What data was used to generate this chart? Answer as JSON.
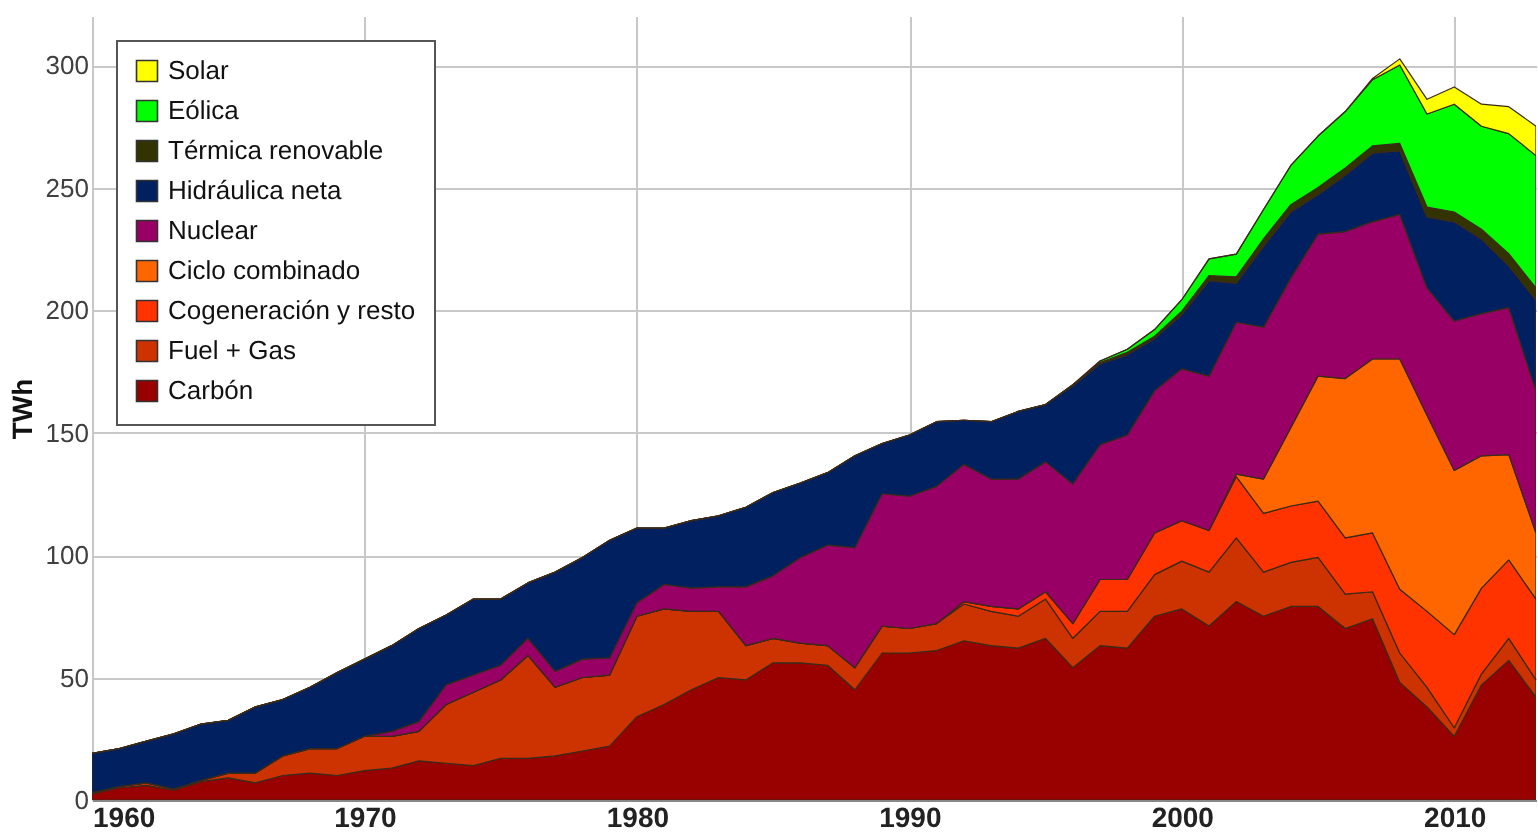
{
  "chart_data": {
    "type": "area",
    "stacked": true,
    "ylabel": "TWh",
    "xlim": [
      1960,
      2013
    ],
    "xticks": [
      1960,
      1970,
      1980,
      1990,
      2000,
      2010
    ],
    "ylim": [
      0,
      320
    ],
    "yticks": [
      0,
      50,
      100,
      150,
      200,
      250,
      300
    ],
    "grid": true,
    "legend": "top left",
    "x": [
      1960,
      1961,
      1962,
      1963,
      1964,
      1965,
      1966,
      1967,
      1968,
      1969,
      1970,
      1971,
      1972,
      1973,
      1974,
      1975,
      1976,
      1977,
      1978,
      1979,
      1980,
      1981,
      1982,
      1983,
      1984,
      1985,
      1986,
      1987,
      1988,
      1989,
      1990,
      1991,
      1992,
      1993,
      1994,
      1995,
      1996,
      1997,
      1998,
      1999,
      2000,
      2001,
      2002,
      2003,
      2004,
      2005,
      2006,
      2007,
      2008,
      2009,
      2010,
      2011,
      2012,
      2013
    ],
    "series": [
      {
        "name": "Carbón",
        "color": "#990000",
        "values": [
          2.5,
          5,
          6,
          4,
          7.5,
          9,
          7,
          10,
          11,
          10,
          12,
          13,
          16,
          15,
          14,
          17,
          17,
          18,
          20,
          22,
          34,
          39,
          45,
          50,
          49,
          56,
          56,
          55,
          45,
          60,
          60,
          61,
          65,
          63,
          62,
          66,
          54,
          63,
          62,
          75,
          78,
          71,
          81,
          75,
          79,
          79,
          70,
          74,
          48,
          38,
          26,
          47,
          57,
          42
        ]
      },
      {
        "name": "Fuel + Gas",
        "color": "#cc3300",
        "values": [
          0.5,
          0.5,
          1,
          0.5,
          0.5,
          2,
          4,
          8,
          10,
          11,
          14,
          13,
          12,
          24,
          30,
          32,
          42,
          28,
          30,
          29,
          41,
          39,
          32,
          27,
          14,
          10,
          8,
          8,
          9,
          11,
          10,
          11,
          15,
          14,
          13,
          16,
          12,
          14,
          15,
          17,
          19.5,
          22,
          26,
          18,
          18,
          20,
          14,
          11,
          12,
          8,
          3.5,
          4.5,
          9,
          7
        ]
      },
      {
        "name": "Cogeneración y resto",
        "color": "#ff3300",
        "values": [
          0,
          0,
          0,
          0,
          0,
          0,
          0,
          0,
          0,
          0,
          0,
          0,
          0,
          0,
          0,
          0,
          0,
          0,
          0,
          0,
          0,
          0,
          0,
          0,
          0,
          0,
          0,
          0,
          0,
          0,
          0,
          0,
          1,
          2,
          3,
          3,
          6,
          13,
          13,
          17,
          16.5,
          17,
          25,
          24,
          23,
          23,
          23,
          24,
          26,
          31,
          38,
          35,
          32,
          33
        ]
      },
      {
        "name": "Ciclo combinado",
        "color": "#ff6600",
        "values": [
          0,
          0,
          0,
          0,
          0,
          0,
          0,
          0,
          0,
          0,
          0,
          0,
          0,
          0,
          0,
          0,
          0,
          0,
          0,
          0,
          0,
          0,
          0,
          0,
          0,
          0,
          0,
          0,
          0,
          0,
          0,
          0,
          0,
          0,
          0,
          0,
          0,
          0,
          0,
          0,
          0,
          0,
          1,
          14,
          32,
          51,
          65,
          71,
          94,
          80,
          67,
          54,
          43,
          27
        ]
      },
      {
        "name": "Nuclear",
        "color": "#990066",
        "values": [
          0,
          0,
          0,
          0,
          0,
          0,
          0,
          0,
          0,
          0,
          0,
          2,
          4,
          8,
          7,
          6,
          7,
          6.5,
          7.5,
          7,
          5.5,
          10,
          9.5,
          10,
          24,
          25.5,
          35,
          41,
          49,
          54,
          54,
          56,
          56,
          52,
          53,
          53,
          57,
          55,
          59,
          58,
          62,
          63,
          62,
          62,
          61,
          58,
          60,
          56,
          59,
          52,
          61,
          58,
          60,
          58
        ]
      },
      {
        "name": "Hidráulica neta",
        "color": "#002060",
        "values": [
          16,
          15.5,
          17,
          22.5,
          23,
          21.5,
          27,
          23,
          25,
          31,
          31.5,
          35,
          38,
          28.5,
          31,
          27,
          22.6,
          40.5,
          41.5,
          48,
          30.5,
          23,
          27.5,
          29,
          32.5,
          34,
          30.4,
          29.6,
          37.5,
          20.5,
          25,
          26.4,
          18,
          23.4,
          27.6,
          23.4,
          40,
          33,
          32.7,
          21.3,
          22,
          39,
          16,
          33,
          27,
          16,
          23,
          28,
          26,
          29,
          40.5,
          30.5,
          17,
          37
        ]
      },
      {
        "name": "Térmica renovable",
        "color": "#333300",
        "values": [
          0,
          0,
          0,
          0,
          0,
          0,
          0,
          0,
          0,
          0,
          0,
          0,
          0,
          0,
          0,
          0,
          0,
          0,
          0,
          0,
          0,
          0,
          0,
          0,
          0,
          0,
          0,
          0,
          0,
          0,
          0,
          0,
          0,
          0,
          0,
          0,
          0.5,
          0.5,
          1,
          1,
          1.5,
          2,
          2.5,
          3,
          3,
          3,
          3,
          3,
          3,
          4,
          4,
          4,
          5,
          5
        ]
      },
      {
        "name": "Eólica",
        "color": "#00ff00",
        "values": [
          0,
          0,
          0,
          0,
          0,
          0,
          0,
          0,
          0,
          0,
          0,
          0,
          0,
          0,
          0,
          0,
          0,
          0,
          0,
          0,
          0,
          0,
          0,
          0,
          0,
          0,
          0,
          0,
          0,
          0,
          0,
          0,
          0,
          0,
          0,
          0,
          0,
          0.7,
          1.3,
          2.7,
          4.7,
          6.9,
          9.3,
          12,
          16,
          21,
          23,
          27,
          32,
          38,
          44,
          42,
          49,
          54
        ]
      },
      {
        "name": "Solar",
        "color": "#ffff00",
        "values": [
          0,
          0,
          0,
          0,
          0,
          0,
          0,
          0,
          0,
          0,
          0,
          0,
          0,
          0,
          0,
          0,
          0,
          0,
          0,
          0,
          0,
          0,
          0,
          0,
          0,
          0,
          0,
          0,
          0,
          0,
          0,
          0,
          0,
          0,
          0,
          0,
          0,
          0,
          0,
          0,
          0,
          0,
          0,
          0,
          0,
          0,
          0,
          0.5,
          2.5,
          6,
          7,
          9,
          11,
          12
        ]
      }
    ]
  }
}
